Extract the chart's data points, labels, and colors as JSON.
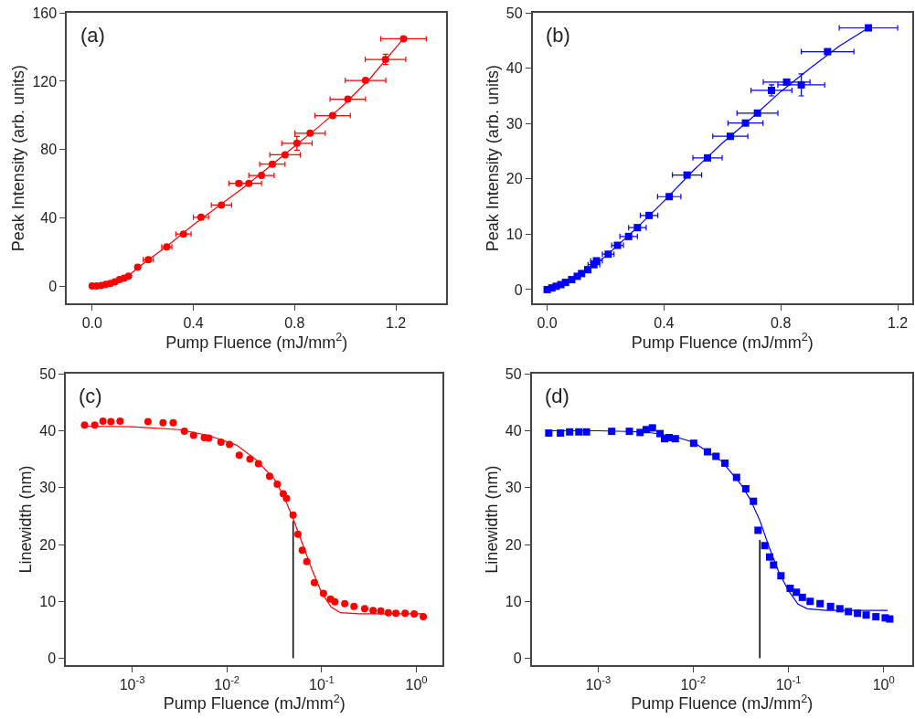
{
  "chart_data": [
    {
      "type": "scatter",
      "annotations": [
        "(a)"
      ],
      "xlabel": "Pump Fluence (mJ/mm$^{2}$)",
      "ylabel": "Peak Intensity (arb. units)",
      "xlim": [
        -0.1,
        1.4
      ],
      "xticks": [
        {
          "value": 0,
          "label": "0.0"
        },
        0.4,
        0.8,
        1.2
      ],
      "ylim": [
        -10,
        160
      ],
      "yticks": [
        0,
        40,
        80,
        120,
        160
      ],
      "series": [
        {
          "color": "#ff0000",
          "marker": "circle",
          "x": [
            0.0,
            0.018,
            0.036,
            0.054,
            0.072,
            0.09,
            0.108,
            0.126,
            0.144,
            0.18,
            0.222,
            0.295,
            0.361,
            0.43,
            0.511,
            0.58,
            0.619,
            0.669,
            0.712,
            0.762,
            0.809,
            0.861,
            0.95,
            1.01,
            1.08,
            1.159,
            1.23
          ],
          "values": [
            0.2,
            0.2,
            0.5,
            1.1,
            1.7,
            2.6,
            3.9,
            4.8,
            6,
            11.2,
            15.6,
            23.1,
            30.6,
            40.4,
            47.6,
            60.3,
            60.3,
            64.9,
            71.5,
            77,
            83.7,
            89.6,
            99.9,
            109.5,
            120.5,
            132.8,
            144.9
          ],
          "xerrors": [
            null,
            null,
            null,
            null,
            null,
            null,
            null,
            null,
            null,
            null,
            0.02,
            0.02,
            0.03,
            0.03,
            0.04,
            0.04,
            0.05,
            0.05,
            0.05,
            0.06,
            0.06,
            0.06,
            0.07,
            0.07,
            0.08,
            0.08,
            0.09
          ],
          "errors": [
            null,
            null,
            null,
            null,
            null,
            null,
            null,
            null,
            null,
            null,
            null,
            null,
            null,
            null,
            null,
            null,
            null,
            null,
            null,
            null,
            4,
            null,
            null,
            null,
            null,
            3,
            null
          ]
        },
        {
          "type": "line",
          "color": "#ff0000",
          "marker": "none",
          "x": [
            0,
            0.05,
            0.1,
            0.15,
            0.2,
            0.3,
            0.4,
            0.5,
            0.6,
            0.7,
            0.8,
            0.9,
            1.0,
            1.1,
            1.23
          ],
          "values": [
            0,
            1,
            3,
            7,
            13,
            24,
            36,
            47,
            58,
            70,
            82,
            94,
            107,
            122,
            145
          ]
        }
      ]
    },
    {
      "type": "scatter",
      "annotations": [
        "(b)"
      ],
      "xlabel": "Pump Fluence (mJ/mm$^{2}$)",
      "ylabel": "Peak Intensity (arb. units)",
      "xlim": [
        -0.05,
        1.25
      ],
      "xticks": [
        {
          "value": 0,
          "label": "0.0"
        },
        0.4,
        0.8,
        1.2
      ],
      "ylim": [
        -2.5,
        50
      ],
      "yticks": [
        0,
        10,
        20,
        30,
        40,
        50
      ],
      "series": [
        {
          "color": "#0000ff",
          "marker": "square",
          "x": [
            0,
            0.016,
            0.031,
            0.047,
            0.063,
            0.084,
            0.103,
            0.118,
            0.139,
            0.16,
            0.169,
            0.209,
            0.241,
            0.279,
            0.309,
            0.349,
            0.418,
            0.479,
            0.549,
            0.627,
            0.679,
            0.72,
            0.768,
            0.82,
            0.87,
            0.96,
            1.1
          ],
          "values": [
            0,
            0.3,
            0.6,
            0.9,
            1.3,
            1.8,
            2.4,
            2.9,
            3.6,
            4.5,
            5.2,
            6.4,
            8.0,
            9.6,
            11.2,
            13.4,
            16.8,
            20.7,
            23.8,
            27.7,
            30.1,
            31.9,
            36.0,
            37.5,
            37.0,
            43.0,
            47.3
          ],
          "xerrors": [
            null,
            null,
            null,
            null,
            null,
            null,
            null,
            null,
            null,
            0.02,
            0.02,
            0.02,
            0.02,
            0.03,
            0.03,
            0.03,
            0.04,
            0.05,
            0.05,
            0.06,
            0.06,
            0.07,
            0.07,
            0.08,
            0.08,
            0.09,
            0.1
          ],
          "errors": [
            null,
            null,
            null,
            null,
            null,
            null,
            null,
            null,
            null,
            null,
            null,
            null,
            null,
            null,
            null,
            null,
            null,
            null,
            null,
            null,
            null,
            null,
            1,
            null,
            2,
            null,
            null
          ]
        },
        {
          "type": "line",
          "color": "#0000ff",
          "marker": "none",
          "x": [
            0,
            0.1,
            0.2,
            0.3,
            0.4,
            0.5,
            0.6,
            0.7,
            0.8,
            0.9,
            1.0,
            1.1
          ],
          "values": [
            0,
            2.3,
            6.0,
            10.8,
            16,
            21.5,
            26.5,
            31,
            35.8,
            40,
            44,
            47.3
          ]
        }
      ]
    },
    {
      "type": "scatter",
      "annotations": [
        "(c)"
      ],
      "log": "x",
      "xlabel": "Pump Fluence (mJ/mm$^{2}$)",
      "ylabel": "Linewidth (nm)",
      "xlim": [
        0.0002,
        1.9
      ],
      "xticks": [
        {
          "value": 0.001,
          "label": "10$^{-3}$"
        },
        {
          "value": 0.01,
          "label": "10$^{-2}$"
        },
        {
          "value": 0.1,
          "label": "10$^{-1}$"
        },
        {
          "value": 1,
          "label": "10$^{0}$"
        }
      ],
      "ylim": [
        -1.2,
        50
      ],
      "yticks": [
        0,
        10,
        20,
        30,
        40,
        50
      ],
      "ref_lines": [
        {
          "axis": "x",
          "value": 0.05,
          "color": "#000000"
        }
      ],
      "series": [
        {
          "color": "#ff0000",
          "marker": "circle",
          "x": [
            0.000315,
            0.000403,
            0.000492,
            0.000596,
            0.000745,
            0.00147,
            0.00212,
            0.00271,
            0.00356,
            0.00445,
            0.00577,
            0.00644,
            0.00865,
            0.01064,
            0.0135,
            0.0175,
            0.0215,
            0.0282,
            0.034,
            0.0394,
            0.0425,
            0.0499,
            0.0562,
            0.0624,
            0.0697,
            0.0838,
            0.1045,
            0.124,
            0.138,
            0.175,
            0.219,
            0.284,
            0.349,
            0.42,
            0.505,
            0.607,
            0.759,
            0.946,
            1.18
          ],
          "values": [
            41.0,
            41.0,
            41.7,
            41.6,
            41.7,
            41.6,
            41.4,
            41.4,
            39.9,
            39.2,
            38.8,
            38.7,
            38.0,
            37.6,
            35.7,
            35.0,
            34.2,
            32.0,
            30.6,
            28.9,
            28.1,
            25.2,
            21.8,
            19.0,
            17.0,
            13.3,
            11.4,
            10.4,
            9.9,
            9.6,
            9.1,
            8.7,
            8.4,
            8.3,
            8.0,
            7.9,
            7.9,
            7.8,
            7.3
          ]
        },
        {
          "type": "line",
          "color": "#ff0000",
          "marker": "none",
          "x": [
            0.000316,
            0.001,
            0.00316,
            0.00631,
            0.0126,
            0.02,
            0.0316,
            0.0398,
            0.0501,
            0.0631,
            0.0794,
            0.1,
            0.126,
            0.158,
            0.251,
            1.0,
            1.2
          ],
          "values": [
            40.8,
            40.7,
            40.2,
            39.2,
            37.5,
            35.0,
            31.5,
            28.5,
            24.5,
            20,
            15.5,
            11.5,
            9.0,
            8.0,
            7.8,
            7.8,
            7.8
          ]
        }
      ]
    },
    {
      "type": "scatter",
      "annotations": [
        "(d)"
      ],
      "log": "x",
      "xlabel": "Pump Fluence (mJ/mm$^{2}$)",
      "ylabel": "Linewidth (nm)",
      "xlim": [
        0.0002,
        2.0
      ],
      "xticks": [
        {
          "value": 0.001,
          "label": "10$^{-3}$"
        },
        {
          "value": 0.01,
          "label": "10$^{-2}$"
        },
        {
          "value": 0.1,
          "label": "10$^{-1}$"
        },
        {
          "value": 1,
          "label": "10$^{0}$"
        }
      ],
      "ylim": [
        -1.2,
        50
      ],
      "yticks": [
        0,
        10,
        20,
        30,
        40,
        50
      ],
      "ref_lines": [
        {
          "axis": "x",
          "value": 0.05,
          "color": "#000000"
        }
      ],
      "series": [
        {
          "color": "#0000ff",
          "marker": "square",
          "x": [
            0.000303,
            0.000402,
            0.000502,
            0.000627,
            0.000755,
            0.001387,
            0.00213,
            0.00276,
            0.0032,
            0.00372,
            0.00447,
            0.00499,
            0.00558,
            0.00647,
            0.01009,
            0.0141,
            0.0173,
            0.0215,
            0.0285,
            0.0356,
            0.0429,
            0.0479,
            0.0564,
            0.0634,
            0.0698,
            0.0834,
            0.1042,
            0.121,
            0.14,
            0.169,
            0.215,
            0.277,
            0.347,
            0.427,
            0.532,
            0.655,
            0.83,
            1.04,
            1.16
          ],
          "values": [
            39.6,
            39.6,
            39.8,
            39.8,
            39.8,
            39.9,
            39.9,
            39.7,
            40.2,
            40.5,
            39.5,
            38.6,
            38.8,
            38.6,
            37.8,
            36.3,
            35.5,
            34.3,
            31.8,
            29.8,
            27.6,
            22.5,
            19.8,
            17.8,
            16.4,
            14.5,
            12.3,
            11.6,
            10.7,
            10.0,
            9.6,
            9.1,
            8.7,
            8.2,
            7.9,
            7.6,
            7.3,
            7.1,
            6.9
          ]
        },
        {
          "type": "line",
          "color": "#0000ff",
          "marker": "none",
          "x": [
            0.0003,
            0.001,
            0.00316,
            0.00631,
            0.01,
            0.02,
            0.0316,
            0.0398,
            0.0501,
            0.0631,
            0.0794,
            0.1,
            0.126,
            0.158,
            0.251,
            1.1
          ],
          "values": [
            40,
            40,
            39.8,
            39.0,
            38.0,
            34.6,
            30.6,
            27.9,
            24.2,
            19.4,
            15.1,
            11.9,
            9.5,
            8.7,
            8.4,
            8.4
          ]
        }
      ]
    }
  ]
}
